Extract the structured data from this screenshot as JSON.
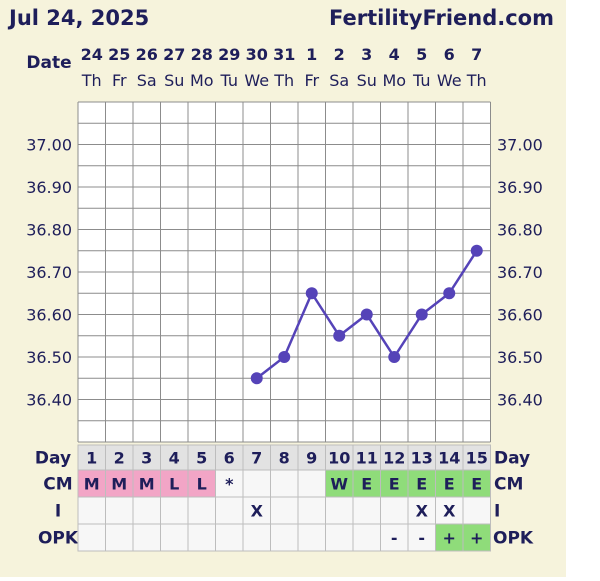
{
  "header": {
    "date": "Jul 24, 2025",
    "brand": "FertilityFriend.com"
  },
  "row_labels": {
    "date": "Date",
    "day": "Day",
    "cm": "CM",
    "intercourse": "I",
    "opk": "OPK"
  },
  "colors": {
    "card_bg": "#f6f3dc",
    "grid": "#8c8c8c",
    "line": "#5543b8",
    "text": "#1e1e5a",
    "cm_pink": "#f2a5c6",
    "cm_green": "#8fdc7a",
    "day_cell": "#e2e2e2",
    "empty_cell": "#f7f7f7"
  },
  "chart_data": {
    "type": "line",
    "dates": [
      "24",
      "25",
      "26",
      "27",
      "28",
      "29",
      "30",
      "31",
      "1",
      "2",
      "3",
      "4",
      "5",
      "6",
      "7"
    ],
    "weekdays": [
      "Th",
      "Fr",
      "Sa",
      "Su",
      "Mo",
      "Tu",
      "We",
      "Th",
      "Fr",
      "Sa",
      "Su",
      "Mo",
      "Tu",
      "We",
      "Th"
    ],
    "cycle_days": [
      "1",
      "2",
      "3",
      "4",
      "5",
      "6",
      "7",
      "8",
      "9",
      "10",
      "11",
      "12",
      "13",
      "14",
      "15"
    ],
    "ylim": [
      36.3,
      37.1
    ],
    "y_ticks": [
      "37.00",
      "36.90",
      "36.80",
      "36.70",
      "36.60",
      "36.50",
      "36.40"
    ],
    "series": [
      {
        "values": [
          null,
          null,
          null,
          null,
          null,
          null,
          36.45,
          36.5,
          36.65,
          36.55,
          36.6,
          36.5,
          36.6,
          36.65,
          36.75
        ]
      }
    ],
    "cm": [
      "M",
      "M",
      "M",
      "L",
      "L",
      "*",
      "",
      "",
      "",
      "W",
      "E",
      "E",
      "E",
      "E",
      "E"
    ],
    "intercourse": [
      "",
      "",
      "",
      "",
      "",
      "",
      "X",
      "",
      "",
      "",
      "",
      "",
      "X",
      "X",
      ""
    ],
    "opk": [
      "",
      "",
      "",
      "",
      "",
      "",
      "",
      "",
      "",
      "",
      "",
      "-",
      "-",
      "+",
      "+"
    ]
  }
}
